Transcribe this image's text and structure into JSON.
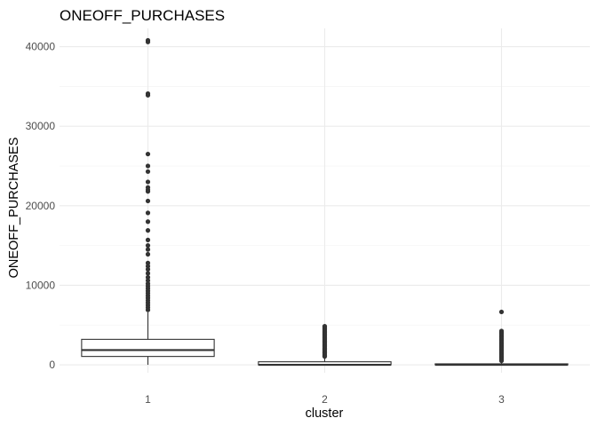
{
  "chart_data": {
    "type": "boxplot",
    "title": "ONEOFF_PURCHASES",
    "xlabel": "cluster",
    "ylabel": "ONEOFF_PURCHASES",
    "ylim": [
      -1000,
      42300
    ],
    "yticks": [
      0,
      10000,
      20000,
      30000,
      40000
    ],
    "grid": true,
    "categories": [
      "1",
      "2",
      "3"
    ],
    "boxes": [
      {
        "category": "1",
        "q1": 1050,
        "median": 1850,
        "q3": 3200,
        "whisker_low": 0,
        "whisker_high": 6600,
        "outliers": [
          40800,
          40600,
          34100,
          33900,
          26500,
          25000,
          24300,
          23000,
          22300,
          22000,
          21800,
          20600,
          19100,
          18000,
          16900,
          15700,
          15000,
          14500,
          13900,
          12800,
          12400,
          12000,
          11500,
          11000,
          10600,
          10200,
          9900,
          9600,
          9300,
          9000,
          8700,
          8400,
          8100,
          7800,
          7500,
          7200,
          6900
        ]
      },
      {
        "category": "2",
        "q1": 0,
        "median": 0,
        "q3": 380,
        "whisker_low": 0,
        "whisker_high": 950,
        "outliers": [
          4850,
          4750,
          4650,
          4500,
          4350,
          4200,
          4050,
          3900,
          3750,
          3600,
          3450,
          3300,
          3150,
          3000,
          2850,
          2700,
          2550,
          2400,
          2250,
          2100,
          1950,
          1800,
          1650,
          1500,
          1350,
          1200,
          1050
        ]
      },
      {
        "category": "3",
        "q1": 0,
        "median": 0,
        "q3": 120,
        "whisker_low": 0,
        "whisker_high": 350,
        "outliers": [
          6650,
          4250,
          4100,
          3950,
          3800,
          3650,
          3500,
          3350,
          3200,
          3050,
          2900,
          2750,
          2600,
          2450,
          2300,
          2150,
          2000,
          1850,
          1700,
          1550,
          1400,
          1250,
          1100,
          950,
          800,
          650,
          500
        ]
      }
    ]
  }
}
